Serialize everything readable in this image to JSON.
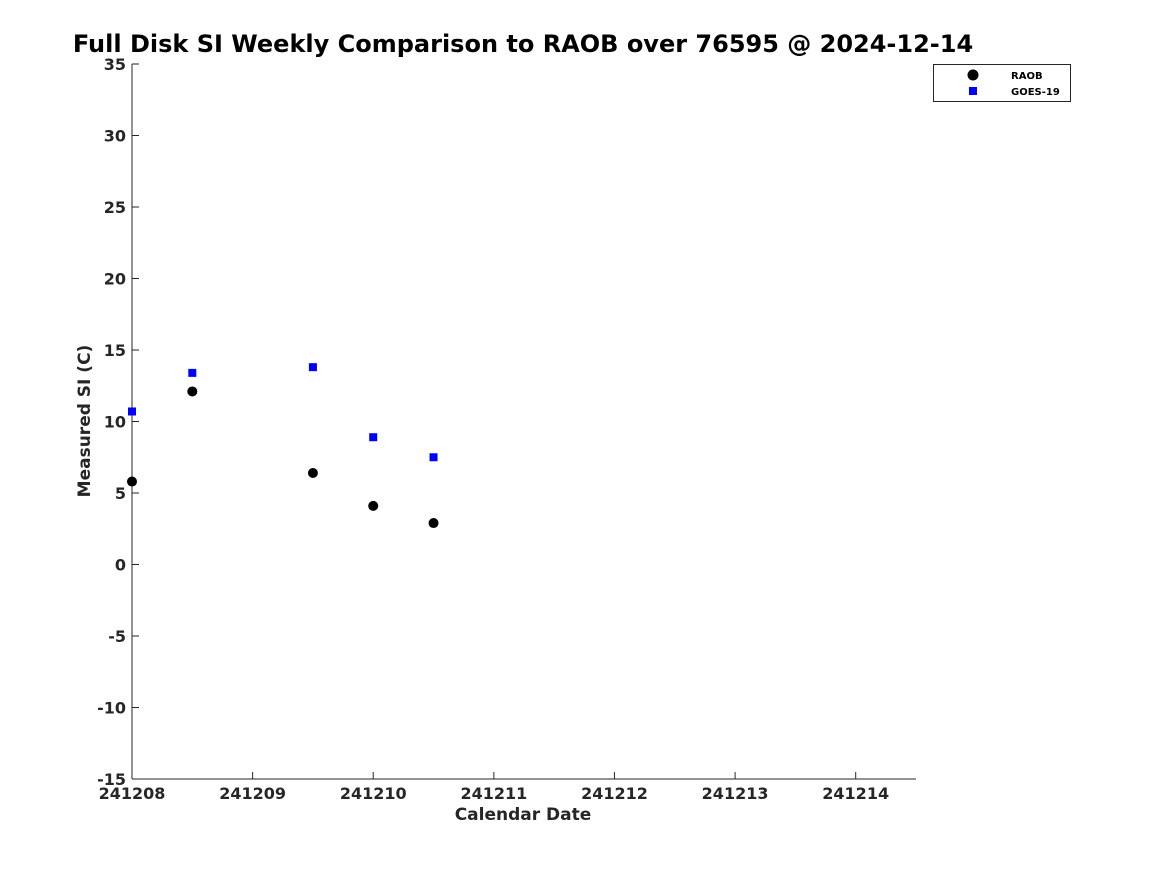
{
  "chart_data": {
    "type": "scatter",
    "title": "Full Disk SI Weekly Comparison to RAOB over 76595 @ 2024-12-14",
    "xlabel": "Calendar Date",
    "ylabel": "Measured SI (C)",
    "xlim": [
      241208,
      241214.5
    ],
    "ylim": [
      -15,
      35
    ],
    "xticks": [
      241208,
      241209,
      241210,
      241211,
      241212,
      241213,
      241214
    ],
    "xtick_labels": [
      "241208",
      "241209",
      "241210",
      "241211",
      "241212",
      "241213",
      "241214"
    ],
    "yticks": [
      -15,
      -10,
      -5,
      0,
      5,
      10,
      15,
      20,
      25,
      30,
      35
    ],
    "ytick_labels": [
      "-15",
      "-10",
      "-5",
      "0",
      "5",
      "10",
      "15",
      "20",
      "25",
      "30",
      "35"
    ],
    "grid": false,
    "legend_position": "top-right",
    "series": [
      {
        "name": "RAOB",
        "marker": "circle",
        "color": "#000000",
        "x": [
          241208.0,
          241208.5,
          241209.5,
          241210.0,
          241210.5
        ],
        "y": [
          5.8,
          12.1,
          6.4,
          4.1,
          2.9
        ]
      },
      {
        "name": "GOES-19",
        "marker": "square",
        "color": "#0000ff",
        "x": [
          241208.0,
          241208.5,
          241209.5,
          241210.0,
          241210.5
        ],
        "y": [
          10.7,
          13.4,
          13.8,
          8.9,
          7.5
        ]
      }
    ]
  }
}
